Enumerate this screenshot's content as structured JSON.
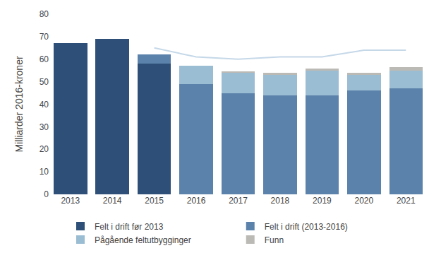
{
  "chart_data": {
    "type": "bar",
    "stacked": true,
    "categories": [
      "2013",
      "2014",
      "2015",
      "2016",
      "2017",
      "2018",
      "2019",
      "2020",
      "2021"
    ],
    "series": [
      {
        "name": "Felt i drift før 2013",
        "color": "#2E5078",
        "values": [
          67,
          69,
          58,
          0,
          0,
          0,
          0,
          0,
          0
        ]
      },
      {
        "name": "Felt i drift (2013-2016)",
        "color": "#5B82AA",
        "values": [
          0,
          0,
          4,
          49,
          45,
          44,
          44,
          46,
          47
        ]
      },
      {
        "name": "Pågående feltutbygginger",
        "color": "#9BBDD4",
        "values": [
          0,
          0,
          0,
          8,
          9,
          9,
          11,
          7,
          8
        ]
      },
      {
        "name": "Funn",
        "color": "#BCBAB5",
        "values": [
          0,
          0,
          0,
          0,
          0.5,
          1,
          1,
          1,
          1.5
        ]
      },
      {
        "type": "line",
        "color": "#C5D8E8",
        "values": [
          null,
          null,
          65,
          61,
          60,
          61,
          61,
          64,
          64
        ]
      }
    ],
    "ylabel": "Milliarder 2016-kroner",
    "ylim": [
      0,
      80
    ],
    "yticks": [
      0,
      10,
      20,
      30,
      40,
      50,
      60,
      70,
      80
    ],
    "grid": false,
    "legend": "bottom"
  }
}
